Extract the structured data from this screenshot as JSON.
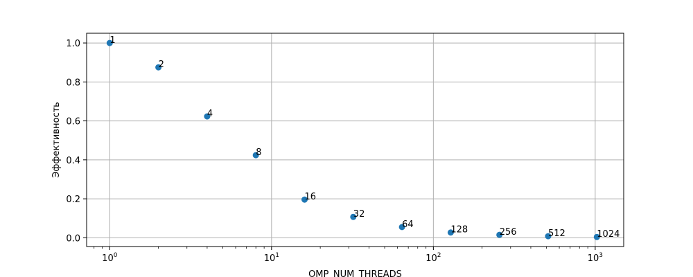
{
  "chart_data": {
    "type": "scatter",
    "xlabel": "OMP_NUM_THREADS",
    "ylabel": "Эффективность",
    "xscale": "log",
    "xlim": [
      0.72,
      1500
    ],
    "ylim": [
      -0.045,
      1.05
    ],
    "grid": true,
    "x": [
      1,
      2,
      4,
      8,
      16,
      32,
      64,
      128,
      256,
      512,
      1024
    ],
    "y": [
      1.0,
      0.875,
      0.623,
      0.424,
      0.196,
      0.107,
      0.055,
      0.027,
      0.015,
      0.008,
      0.004
    ],
    "point_labels": [
      "1",
      "2",
      "4",
      "8",
      "16",
      "32",
      "64",
      "128",
      "256",
      "512",
      "1024"
    ],
    "x_ticks": [
      {
        "value": 1,
        "base": "10",
        "exp": "0"
      },
      {
        "value": 10,
        "base": "10",
        "exp": "1"
      },
      {
        "value": 100,
        "base": "10",
        "exp": "2"
      },
      {
        "value": 1000,
        "base": "10",
        "exp": "3"
      }
    ],
    "y_ticks": [
      {
        "value": 0.0,
        "label": "0.0"
      },
      {
        "value": 0.2,
        "label": "0.2"
      },
      {
        "value": 0.4,
        "label": "0.4"
      },
      {
        "value": 0.6,
        "label": "0.6"
      },
      {
        "value": 0.8,
        "label": "0.8"
      },
      {
        "value": 1.0,
        "label": "1.0"
      }
    ],
    "colors": {
      "marker": "#1f77b4",
      "grid": "#b0b0b0",
      "axes": "#000000"
    }
  }
}
